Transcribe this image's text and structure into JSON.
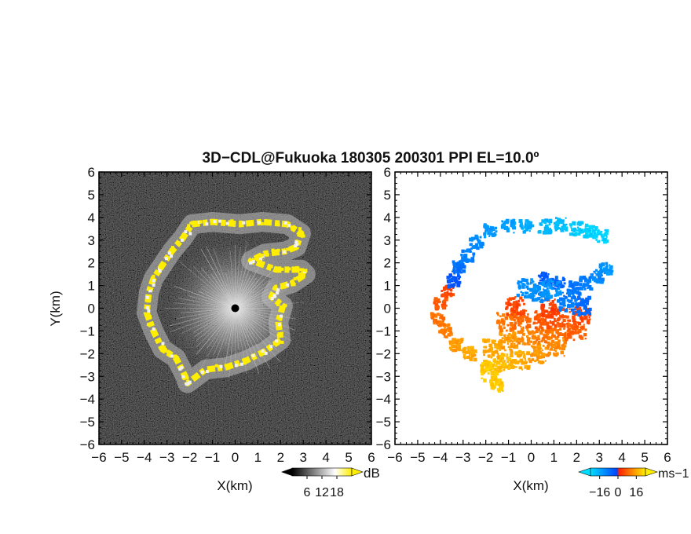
{
  "title": "3D−CDL@Fukuoka 180305 200301 PPI EL=10.0º",
  "chart_data": [
    {
      "type": "heatmap",
      "panel": "left",
      "xlabel": "X(km)",
      "ylabel": "Y(km)",
      "xlim": [
        -6,
        6
      ],
      "ylim": [
        -6,
        6
      ],
      "xticks": [
        -6,
        -5,
        -4,
        -3,
        -2,
        -1,
        0,
        1,
        2,
        3,
        4,
        5,
        6
      ],
      "yticks": [
        -6,
        -5,
        -4,
        -3,
        -2,
        -1,
        0,
        1,
        2,
        3,
        4,
        5,
        6
      ],
      "colorbar": {
        "unit": "dB",
        "range": [
          0,
          24
        ],
        "ticks": [
          6,
          12,
          18
        ],
        "colors": [
          "#000000",
          "#ffffff",
          "#ffee00"
        ]
      },
      "echo_ring_outline": [
        [
          -1.9,
          3.7
        ],
        [
          -1.0,
          3.8
        ],
        [
          0.2,
          3.7
        ],
        [
          1.2,
          3.8
        ],
        [
          2.3,
          3.7
        ],
        [
          2.9,
          3.3
        ],
        [
          2.7,
          2.7
        ],
        [
          2.2,
          2.5
        ],
        [
          1.3,
          2.4
        ],
        [
          0.7,
          2.1
        ],
        [
          1.8,
          1.7
        ],
        [
          2.9,
          1.7
        ],
        [
          3.1,
          1.5
        ],
        [
          2.5,
          1.1
        ],
        [
          1.8,
          0.9
        ],
        [
          1.6,
          0.5
        ],
        [
          2.1,
          0.1
        ],
        [
          1.9,
          -0.6
        ],
        [
          2.0,
          -1.4
        ],
        [
          1.3,
          -1.9
        ],
        [
          0.5,
          -2.3
        ],
        [
          -0.4,
          -2.6
        ],
        [
          -1.3,
          -2.7
        ],
        [
          -2.1,
          -3.3
        ],
        [
          -2.2,
          -3.0
        ],
        [
          -2.6,
          -2.2
        ],
        [
          -3.2,
          -1.8
        ],
        [
          -3.6,
          -1.0
        ],
        [
          -3.9,
          -0.2
        ],
        [
          -3.8,
          0.7
        ],
        [
          -3.6,
          1.3
        ],
        [
          -3.2,
          1.9
        ],
        [
          -2.8,
          2.5
        ],
        [
          -2.3,
          3.1
        ]
      ],
      "echo_ring_width_km": 0.25,
      "center_marker": [
        0,
        0
      ]
    },
    {
      "type": "heatmap",
      "panel": "right",
      "xlabel": "X(km)",
      "ylabel": "Y(km)",
      "xlim": [
        -6,
        6
      ],
      "ylim": [
        -6,
        6
      ],
      "xticks": [
        -6,
        -5,
        -4,
        -3,
        -2,
        -1,
        0,
        1,
        2,
        3,
        4,
        5,
        6
      ],
      "yticks": [
        -6,
        -5,
        -4,
        -3,
        -2,
        -1,
        0,
        1,
        2,
        3,
        4,
        5,
        6
      ],
      "colorbar": {
        "unit": "ms−1",
        "range": [
          -24,
          24
        ],
        "ticks": [
          -16,
          0,
          16
        ],
        "colors": [
          "#00ddff",
          "#0044ff",
          "#ff2200",
          "#ffee00"
        ]
      },
      "arc_points": [
        [
          -1.5,
          -3.4,
          20
        ],
        [
          -1.9,
          -2.6,
          18
        ],
        [
          -2.7,
          -2.0,
          16
        ],
        [
          -3.3,
          -1.6,
          14
        ],
        [
          -3.8,
          -1.0,
          11
        ],
        [
          -4.1,
          -0.5,
          9
        ],
        [
          -4.0,
          0.2,
          6
        ],
        [
          -3.7,
          0.7,
          4
        ],
        [
          -3.4,
          1.2,
          -3
        ],
        [
          -3.2,
          1.8,
          -7
        ],
        [
          -2.8,
          2.3,
          -9
        ],
        [
          -2.4,
          2.9,
          -11
        ],
        [
          -1.8,
          3.4,
          -13
        ],
        [
          -1.0,
          3.6,
          -14
        ],
        [
          -0.2,
          3.6,
          -16
        ],
        [
          0.6,
          3.6,
          -18
        ],
        [
          1.3,
          3.7,
          -19
        ],
        [
          2.0,
          3.5,
          -21
        ],
        [
          2.6,
          3.4,
          -22
        ],
        [
          3.1,
          3.2,
          -22
        ],
        [
          3.3,
          1.7,
          -13
        ],
        [
          2.9,
          1.4,
          -11
        ],
        [
          2.4,
          1.1,
          -9
        ],
        [
          1.9,
          0.9,
          -7
        ],
        [
          1.2,
          1.1,
          -5
        ],
        [
          0.6,
          1.3,
          -3
        ]
      ],
      "fan_points": [
        [
          -1.8,
          -2.8,
          20
        ],
        [
          -1.3,
          -2.4,
          18
        ],
        [
          -0.5,
          -2.3,
          16
        ],
        [
          0.3,
          -2.0,
          14
        ],
        [
          1.1,
          -1.7,
          12
        ],
        [
          -1.7,
          -1.8,
          16
        ],
        [
          -1.0,
          -1.5,
          14
        ],
        [
          -0.2,
          -1.2,
          12
        ],
        [
          0.6,
          -1.2,
          10
        ],
        [
          1.4,
          -1.0,
          8
        ],
        [
          2.0,
          -1.0,
          7
        ],
        [
          -1.1,
          -0.6,
          10
        ],
        [
          -0.4,
          -0.5,
          8
        ],
        [
          0.5,
          -0.5,
          6
        ],
        [
          1.3,
          -0.4,
          5
        ],
        [
          2.2,
          -0.3,
          4
        ],
        [
          -0.7,
          0.1,
          4
        ],
        [
          0.8,
          0.0,
          3
        ],
        [
          2.2,
          0.1,
          -6
        ],
        [
          1.6,
          0.3,
          -9
        ],
        [
          0.4,
          0.7,
          -11
        ],
        [
          -0.2,
          0.9,
          -12
        ],
        [
          0.9,
          0.9,
          -13
        ]
      ],
      "center_marker": [
        0,
        0
      ]
    }
  ]
}
